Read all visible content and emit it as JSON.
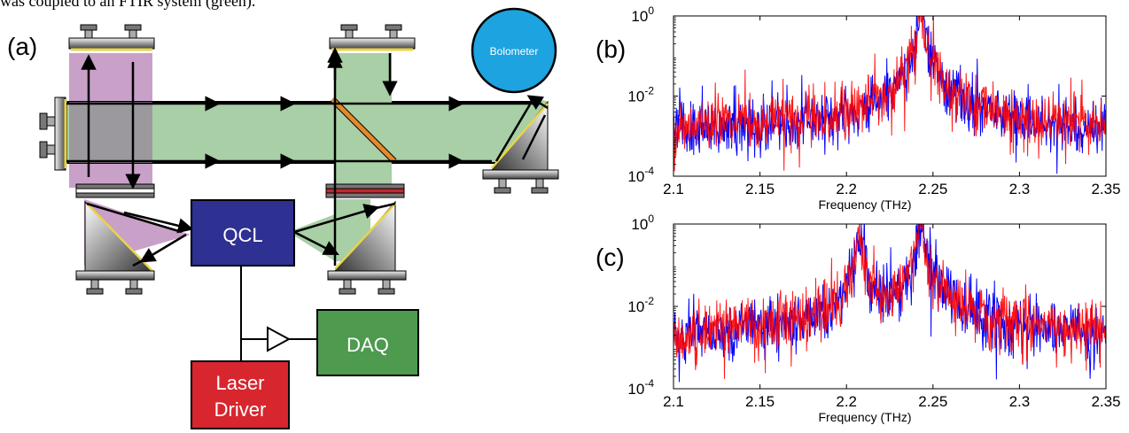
{
  "caption_fragment": "was coupled to an FTIR system (green).",
  "panel_labels": {
    "a": "(a)",
    "b": "(b)",
    "c": "(c)"
  },
  "diagram": {
    "components": {
      "qcl": "QCL",
      "daq": "DAQ",
      "laser_driver_line1": "Laser",
      "laser_driver_line2": "Driver",
      "bolometer": "Bolometer"
    },
    "colors": {
      "cavity_purple": "#c9a0c8",
      "ftir_green": "#a8cfa6",
      "qcl_blue": "#2e3092",
      "daq_green": "#4e9a4e",
      "laser_red": "#d7262e",
      "bolometer_blue": "#1ca3e0",
      "beamsplitter_orange": "#e38a2a"
    }
  },
  "chart_data": [
    {
      "panel": "b",
      "type": "line",
      "xlabel": "Frequency (THz)",
      "ylabel": "",
      "xlim": [
        2.1,
        2.35
      ],
      "ylim": [
        0.0001,
        1
      ],
      "yscale": "log",
      "x_ticks": [
        "2.1",
        "2.15",
        "2.2",
        "2.25",
        "2.3",
        "2.35"
      ],
      "y_ticks": [
        {
          "base": "10",
          "exp": "0",
          "value": 1
        },
        {
          "base": "10",
          "exp": "-2",
          "value": 0.01
        },
        {
          "base": "10",
          "exp": "-4",
          "value": 0.0001
        }
      ],
      "peaks": [
        {
          "x": 2.243,
          "y": 1
        }
      ],
      "noise_floor": 0.0015,
      "series": [
        {
          "color": "#0000ff",
          "description_values": {
            "floor": 0.0012,
            "peak_x": 2.243,
            "peak_y": 1
          }
        },
        {
          "color": "#ff0000",
          "description_values": {
            "floor": 0.0016,
            "peak_x": 2.243,
            "peak_y": 0.9
          }
        }
      ],
      "grid": false
    },
    {
      "panel": "c",
      "type": "line",
      "xlabel": "Frequency (THz)",
      "ylabel": "",
      "xlim": [
        2.1,
        2.35
      ],
      "ylim": [
        0.0001,
        1
      ],
      "yscale": "log",
      "x_ticks": [
        "2.1",
        "2.15",
        "2.2",
        "2.25",
        "2.3",
        "2.35"
      ],
      "y_ticks": [
        {
          "base": "10",
          "exp": "0",
          "value": 1
        },
        {
          "base": "10",
          "exp": "-2",
          "value": 0.01
        },
        {
          "base": "10",
          "exp": "-4",
          "value": 0.0001
        }
      ],
      "peaks": [
        {
          "x": 2.207,
          "y": 0.4
        },
        {
          "x": 2.243,
          "y": 1
        }
      ],
      "noise_floor": 0.002,
      "series": [
        {
          "color": "#0000ff",
          "description_values": {
            "floor": 0.0018,
            "peak_x": 2.243,
            "peak_y": 1
          }
        },
        {
          "color": "#ff0000",
          "description_values": {
            "floor": 0.0022,
            "peak_x": 2.243,
            "peak_y": 0.9
          }
        }
      ],
      "grid": false
    }
  ]
}
